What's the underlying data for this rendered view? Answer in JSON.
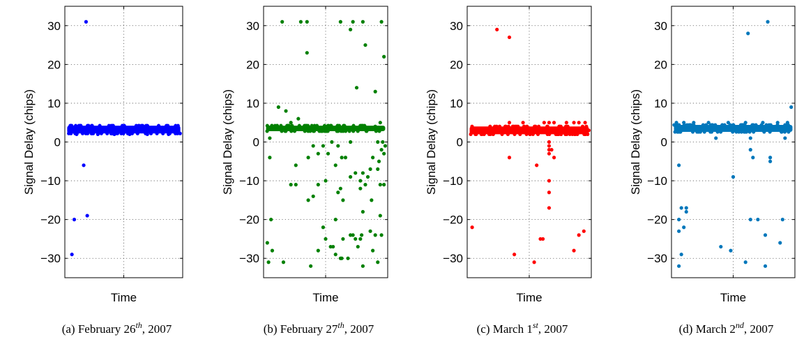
{
  "chart_data": [
    {
      "type": "scatter",
      "caption": {
        "prefix": "(a) February 26",
        "sup": "th",
        "suffix": ", 2007"
      },
      "xlabel": "Time",
      "ylabel": "Signal Delay (chips)",
      "ylim": [
        -35,
        35
      ],
      "yticks": [
        30,
        20,
        10,
        0,
        -10,
        -20,
        -30
      ],
      "xlim": [
        0,
        1
      ],
      "grid": true,
      "series": [
        {
          "color": "#0000ff",
          "band": {
            "x": [
              0.02,
              0.98
            ],
            "y": [
              2.2,
              4.2
            ]
          },
          "points": [
            [
              0.18,
              31
            ],
            [
              0.16,
              -6
            ],
            [
              0.19,
              -19
            ],
            [
              0.08,
              -20
            ],
            [
              0.06,
              -29
            ],
            [
              0.1,
              2
            ],
            [
              0.28,
              2
            ],
            [
              0.42,
              2
            ],
            [
              0.55,
              2
            ],
            [
              0.7,
              2
            ],
            [
              0.88,
              2
            ]
          ]
        }
      ]
    },
    {
      "type": "scatter",
      "caption": {
        "prefix": "(b) February 27",
        "sup": "th",
        "suffix": ", 2007"
      },
      "xlabel": "Time",
      "ylabel": "Signal Delay (chips)",
      "ylim": [
        -35,
        35
      ],
      "yticks": [
        30,
        20,
        10,
        0,
        -10,
        -20,
        -30
      ],
      "xlim": [
        0,
        1
      ],
      "grid": true,
      "series": [
        {
          "color": "#008000",
          "band": {
            "x": [
              0.02,
              0.98
            ],
            "y": [
              2.8,
              4.2
            ]
          },
          "points": [
            [
              0.15,
              31
            ],
            [
              0.3,
              31
            ],
            [
              0.35,
              31
            ],
            [
              0.62,
              31
            ],
            [
              0.72,
              31
            ],
            [
              0.8,
              31
            ],
            [
              0.95,
              31
            ],
            [
              0.7,
              29
            ],
            [
              0.82,
              25
            ],
            [
              0.35,
              23
            ],
            [
              0.97,
              22
            ],
            [
              0.75,
              14
            ],
            [
              0.9,
              13
            ],
            [
              0.12,
              9
            ],
            [
              0.18,
              8
            ],
            [
              0.28,
              6
            ],
            [
              0.22,
              5
            ],
            [
              0.94,
              5
            ],
            [
              0.9,
              4
            ],
            [
              0.05,
              1
            ],
            [
              0.4,
              -1
            ],
            [
              0.48,
              -1
            ],
            [
              0.55,
              0
            ],
            [
              0.6,
              -1
            ],
            [
              0.7,
              0
            ],
            [
              0.92,
              0
            ],
            [
              0.96,
              0
            ],
            [
              0.98,
              -1
            ],
            [
              0.44,
              -3
            ],
            [
              0.52,
              -3
            ],
            [
              0.95,
              -2
            ],
            [
              0.97,
              -3
            ],
            [
              0.05,
              -4
            ],
            [
              0.36,
              -4
            ],
            [
              0.63,
              -4
            ],
            [
              0.66,
              -4
            ],
            [
              0.88,
              -4
            ],
            [
              0.93,
              -5
            ],
            [
              0.26,
              -6
            ],
            [
              0.58,
              -6
            ],
            [
              0.86,
              -7
            ],
            [
              0.74,
              -8
            ],
            [
              0.8,
              -8
            ],
            [
              0.92,
              -7
            ],
            [
              0.7,
              -9
            ],
            [
              0.84,
              -9
            ],
            [
              0.5,
              -10
            ],
            [
              0.78,
              -10
            ],
            [
              0.22,
              -11
            ],
            [
              0.26,
              -11
            ],
            [
              0.44,
              -11
            ],
            [
              0.82,
              -11
            ],
            [
              0.94,
              -11
            ],
            [
              0.97,
              -11
            ],
            [
              0.62,
              -12
            ],
            [
              0.78,
              -12
            ],
            [
              0.6,
              -13
            ],
            [
              0.4,
              -14
            ],
            [
              0.36,
              -15
            ],
            [
              0.64,
              -15
            ],
            [
              0.87,
              -15
            ],
            [
              0.8,
              -18
            ],
            [
              0.06,
              -20
            ],
            [
              0.94,
              -19
            ],
            [
              0.58,
              -20
            ],
            [
              0.48,
              -22
            ],
            [
              0.86,
              -23
            ],
            [
              0.7,
              -24
            ],
            [
              0.72,
              -24
            ],
            [
              0.79,
              -24
            ],
            [
              0.9,
              -24
            ],
            [
              0.95,
              -24
            ],
            [
              0.03,
              -26
            ],
            [
              0.5,
              -25
            ],
            [
              0.64,
              -25
            ],
            [
              0.74,
              -25
            ],
            [
              0.78,
              -25
            ],
            [
              0.07,
              -28
            ],
            [
              0.44,
              -28
            ],
            [
              0.54,
              -27
            ],
            [
              0.56,
              -27
            ],
            [
              0.76,
              -27
            ],
            [
              0.58,
              -29
            ],
            [
              0.62,
              -30
            ],
            [
              0.63,
              -30
            ],
            [
              0.68,
              -30
            ],
            [
              0.88,
              -28
            ],
            [
              0.04,
              -31
            ],
            [
              0.16,
              -31
            ],
            [
              0.38,
              -32
            ],
            [
              0.8,
              -32
            ],
            [
              0.92,
              -31
            ]
          ]
        }
      ]
    },
    {
      "type": "scatter",
      "caption": {
        "prefix": "(c) March 1",
        "sup": "st",
        "suffix": ", 2007"
      },
      "xlabel": "Time",
      "ylabel": "Signal Delay (chips)",
      "ylim": [
        -35,
        35
      ],
      "yticks": [
        30,
        20,
        10,
        0,
        -10,
        -20,
        -30
      ],
      "xlim": [
        0,
        1
      ],
      "grid": true,
      "series": [
        {
          "color": "#ff0000",
          "band": {
            "x": [
              0.02,
              0.98
            ],
            "y": [
              2.0,
              4.0
            ]
          },
          "points": [
            [
              0.24,
              29
            ],
            [
              0.34,
              27
            ],
            [
              0.34,
              5
            ],
            [
              0.45,
              5
            ],
            [
              0.62,
              5
            ],
            [
              0.66,
              5
            ],
            [
              0.7,
              5
            ],
            [
              0.8,
              5
            ],
            [
              0.86,
              5
            ],
            [
              0.9,
              5
            ],
            [
              0.95,
              5
            ],
            [
              0.66,
              0
            ],
            [
              0.66,
              -1
            ],
            [
              0.66,
              -2
            ],
            [
              0.68,
              -2
            ],
            [
              0.66,
              -3
            ],
            [
              0.7,
              -4
            ],
            [
              0.34,
              -4
            ],
            [
              0.56,
              -6
            ],
            [
              0.66,
              -10
            ],
            [
              0.66,
              -13
            ],
            [
              0.66,
              -17
            ],
            [
              0.04,
              -22
            ],
            [
              0.94,
              -23
            ],
            [
              0.9,
              -24
            ],
            [
              0.59,
              -25
            ],
            [
              0.61,
              -25
            ],
            [
              0.86,
              -28
            ],
            [
              0.38,
              -29
            ],
            [
              0.54,
              -31
            ],
            [
              0.96,
              4
            ],
            [
              0.98,
              3
            ]
          ]
        }
      ]
    },
    {
      "type": "scatter",
      "caption": {
        "prefix": "(d) March 2",
        "sup": "nd",
        "suffix": ", 2007"
      },
      "xlabel": "Time",
      "ylabel": "Signal Delay (chips)",
      "ylim": [
        -35,
        35
      ],
      "yticks": [
        30,
        20,
        10,
        0,
        -10,
        -20,
        -30
      ],
      "xlim": [
        0,
        1
      ],
      "grid": true,
      "series": [
        {
          "color": "#0077bb",
          "band": {
            "x": [
              0.02,
              0.98
            ],
            "y": [
              2.6,
              4.4
            ]
          },
          "points": [
            [
              0.78,
              31
            ],
            [
              0.62,
              28
            ],
            [
              0.97,
              9
            ],
            [
              0.04,
              5
            ],
            [
              0.1,
              5
            ],
            [
              0.18,
              5
            ],
            [
              0.3,
              5
            ],
            [
              0.46,
              5
            ],
            [
              0.6,
              5
            ],
            [
              0.74,
              5
            ],
            [
              0.86,
              5
            ],
            [
              0.94,
              5
            ],
            [
              0.36,
              1
            ],
            [
              0.64,
              1
            ],
            [
              0.92,
              1
            ],
            [
              0.64,
              -2
            ],
            [
              0.66,
              -4
            ],
            [
              0.8,
              -4
            ],
            [
              0.8,
              -5
            ],
            [
              0.06,
              -6
            ],
            [
              0.5,
              -9
            ],
            [
              0.08,
              -17
            ],
            [
              0.12,
              -17
            ],
            [
              0.12,
              -18
            ],
            [
              0.06,
              -20
            ],
            [
              0.64,
              -20
            ],
            [
              0.7,
              -20
            ],
            [
              0.9,
              -20
            ],
            [
              0.1,
              -22
            ],
            [
              0.06,
              -23
            ],
            [
              0.76,
              -24
            ],
            [
              0.88,
              -26
            ],
            [
              0.4,
              -27
            ],
            [
              0.48,
              -28
            ],
            [
              0.08,
              -29
            ],
            [
              0.6,
              -31
            ],
            [
              0.06,
              -32
            ],
            [
              0.76,
              -32
            ]
          ]
        }
      ]
    }
  ]
}
